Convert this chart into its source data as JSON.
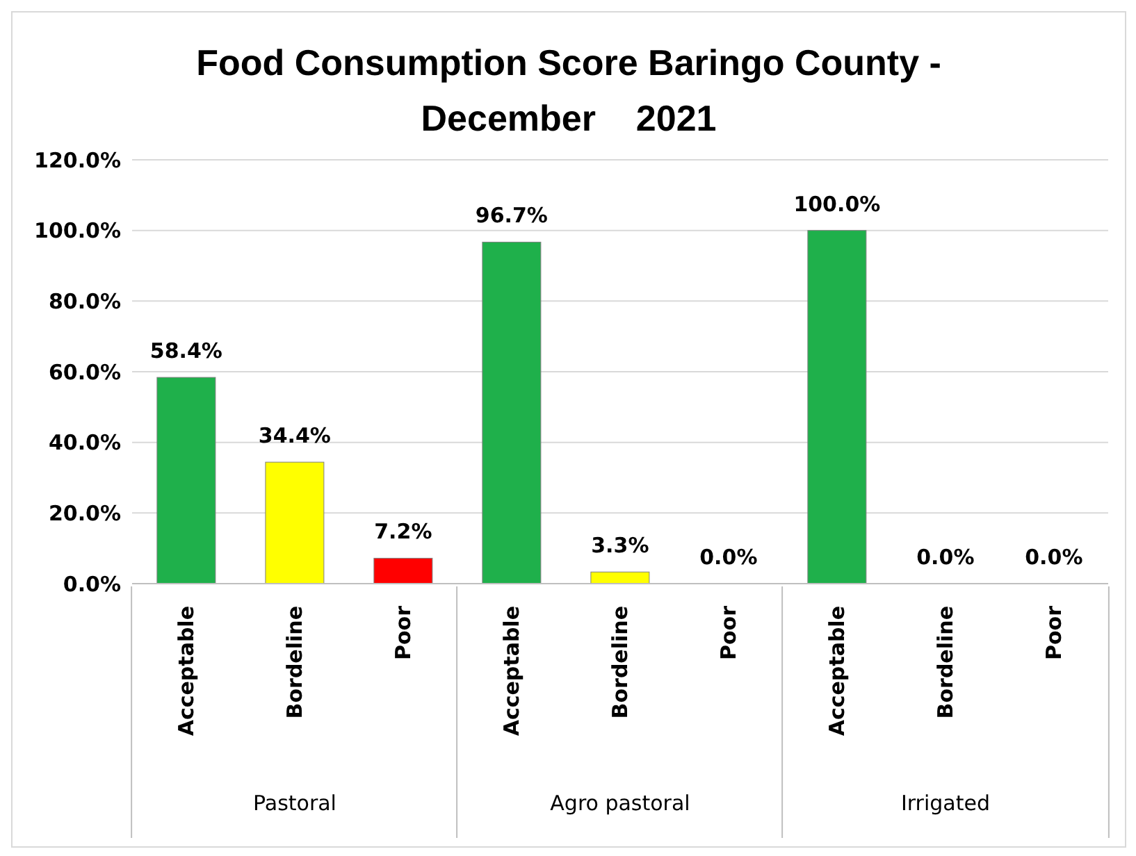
{
  "chart_data": {
    "type": "bar",
    "title": "Food Consumption Score Baringo County - December    2021",
    "categories": [
      "Acceptable",
      "Bordeline",
      "Poor",
      "Acceptable",
      "Bordeline",
      "Poor",
      "Acceptable",
      "Bordeline",
      "Poor"
    ],
    "values": [
      58.4,
      34.4,
      7.2,
      96.7,
      3.3,
      0.0,
      100.0,
      0.0,
      0.0
    ],
    "value_labels": [
      "58.4%",
      "34.4%",
      "7.2%",
      "96.7%",
      "3.3%",
      "0.0%",
      "100.0%",
      "0.0%",
      "0.0%"
    ],
    "colors": [
      "#1fb04b",
      "#ffff00",
      "#ff0000",
      "#1fb04b",
      "#ffff00",
      "#ff0000",
      "#1fb04b",
      "#ffff00",
      "#ff0000"
    ],
    "annotations": [
      "Pastoral",
      "Agro pastoral",
      "Irrigated"
    ],
    "ylim": [
      0,
      120
    ],
    "yticks": [
      {
        "value": 0,
        "label": "0.0%"
      },
      {
        "value": 20,
        "label": "20.0%"
      },
      {
        "value": 40,
        "label": "40.0%"
      },
      {
        "value": 60,
        "label": "60.0%"
      },
      {
        "value": 80,
        "label": "80.0%"
      },
      {
        "value": 100,
        "label": "100.0%"
      },
      {
        "value": 120,
        "label": "120.0%"
      }
    ],
    "grid": "y",
    "legend": false
  }
}
